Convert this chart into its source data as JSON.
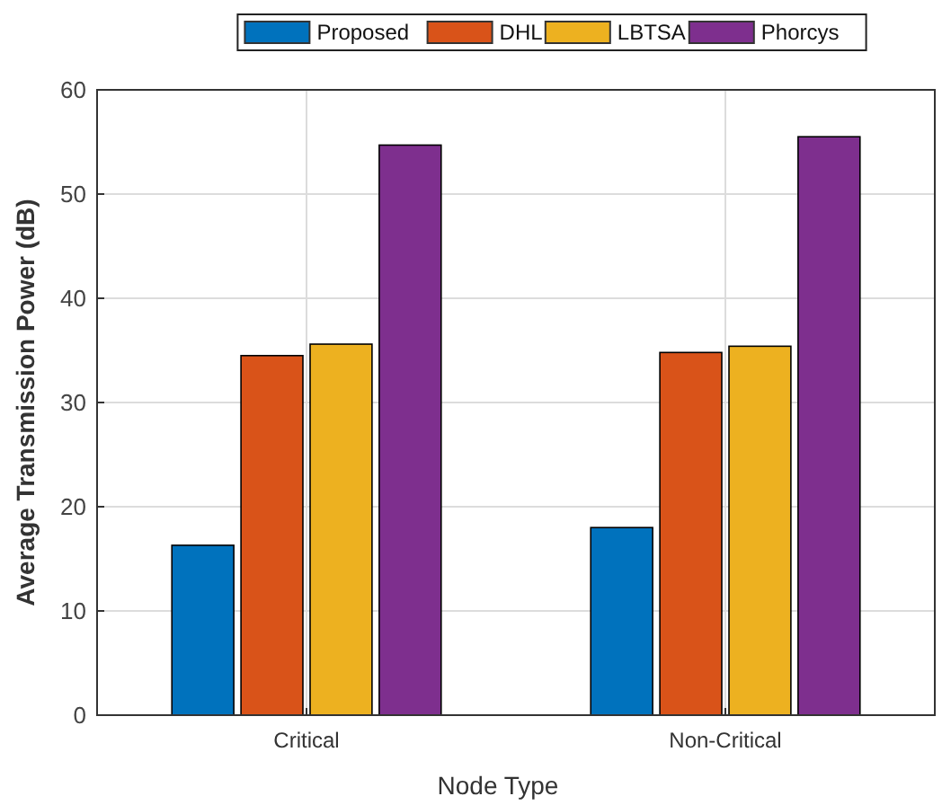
{
  "chart_data": {
    "type": "bar",
    "xlabel": "Node Type",
    "ylabel": "Average Transmission Power (dB)",
    "categories": [
      "Critical",
      "Non-Critical"
    ],
    "series": [
      {
        "name": "Proposed",
        "color": "#0072bd",
        "values": [
          16.3,
          18.0
        ]
      },
      {
        "name": "DHL",
        "color": "#d95319",
        "values": [
          34.5,
          34.8
        ]
      },
      {
        "name": "LBTSA",
        "color": "#edb120",
        "values": [
          35.6,
          35.4
        ]
      },
      {
        "name": "Phorcys",
        "color": "#7e2f8e",
        "values": [
          54.7,
          55.5
        ]
      }
    ],
    "ylim": [
      0,
      60
    ],
    "yticks": [
      0,
      10,
      20,
      30,
      40,
      50,
      60
    ],
    "grid": true,
    "legend": "top"
  }
}
